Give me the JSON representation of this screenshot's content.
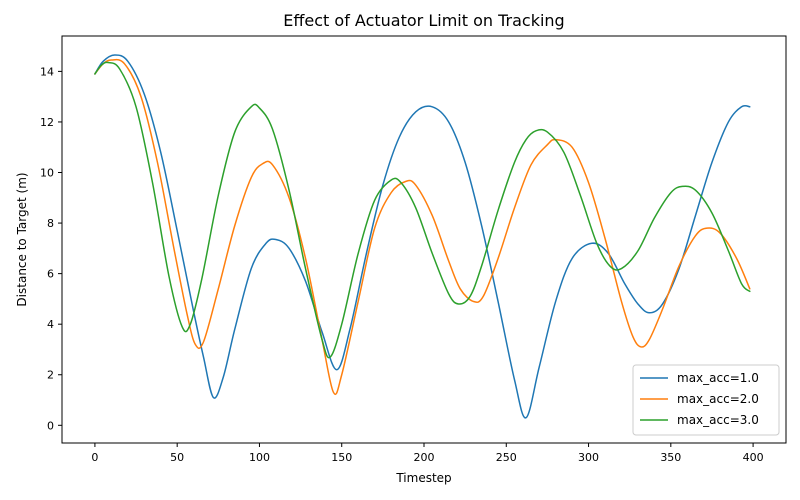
{
  "chart_data": {
    "type": "line",
    "title": "Effect of Actuator Limit on Tracking",
    "xlabel": "Timestep",
    "ylabel": "Distance to Target (m)",
    "xlim": [
      -20,
      420
    ],
    "ylim": [
      -0.7,
      15.4
    ],
    "xticks": [
      0,
      50,
      100,
      150,
      200,
      250,
      300,
      350,
      400
    ],
    "yticks": [
      0,
      2,
      4,
      6,
      8,
      10,
      12,
      14
    ],
    "grid": false,
    "legend": {
      "placement": "lower right"
    },
    "series": [
      {
        "name": "max_acc=1.0",
        "color": "#1f77b4",
        "x": [
          0,
          5,
          12,
          20,
          30,
          40,
          50,
          60,
          66,
          72,
          78,
          85,
          95,
          104,
          110,
          118,
          128,
          138,
          147,
          155,
          165,
          175,
          185,
          195,
          205,
          215,
          225,
          235,
          245,
          255,
          262,
          270,
          280,
          290,
          302,
          312,
          322,
          330,
          337,
          345,
          355,
          365,
          375,
          385,
          393,
          398
        ],
        "y": [
          13.9,
          14.4,
          14.65,
          14.4,
          13.1,
          10.8,
          7.7,
          4.5,
          2.7,
          1.1,
          1.9,
          3.8,
          6.2,
          7.2,
          7.35,
          7.0,
          5.7,
          3.7,
          2.2,
          3.8,
          6.8,
          9.5,
          11.4,
          12.4,
          12.6,
          12.0,
          10.4,
          7.9,
          4.9,
          1.8,
          0.3,
          2.3,
          4.9,
          6.6,
          7.2,
          6.8,
          5.6,
          4.8,
          4.45,
          4.8,
          6.2,
          8.3,
          10.4,
          12.0,
          12.6,
          12.6
        ]
      },
      {
        "name": "max_acc=2.0",
        "color": "#ff7f0e",
        "x": [
          0,
          5,
          10,
          18,
          28,
          38,
          48,
          56,
          61,
          66,
          75,
          85,
          95,
          102,
          108,
          118,
          128,
          138,
          145,
          150,
          160,
          170,
          180,
          189,
          195,
          205,
          215,
          222,
          230,
          236,
          245,
          255,
          265,
          275,
          280,
          290,
          300,
          310,
          320,
          327,
          332,
          337,
          345,
          355,
          365,
          372,
          380,
          390,
          398
        ],
        "y": [
          13.9,
          14.3,
          14.45,
          14.3,
          13.0,
          10.4,
          7.0,
          4.4,
          3.2,
          3.3,
          5.4,
          7.9,
          9.8,
          10.35,
          10.3,
          9.0,
          6.6,
          3.4,
          1.3,
          2.0,
          4.9,
          7.8,
          9.2,
          9.65,
          9.5,
          8.3,
          6.5,
          5.4,
          4.9,
          5.1,
          6.6,
          8.6,
          10.3,
          11.1,
          11.3,
          11.0,
          9.6,
          7.4,
          4.9,
          3.5,
          3.1,
          3.4,
          4.6,
          6.3,
          7.5,
          7.8,
          7.6,
          6.6,
          5.4
        ]
      },
      {
        "name": "max_acc=3.0",
        "color": "#2ca02c",
        "x": [
          0,
          4,
          8,
          15,
          25,
          35,
          45,
          53,
          58,
          65,
          75,
          85,
          95,
          100,
          108,
          118,
          128,
          138,
          143,
          150,
          160,
          170,
          180,
          186,
          195,
          205,
          215,
          221,
          228,
          235,
          245,
          255,
          262,
          268,
          275,
          285,
          295,
          305,
          313,
          320,
          330,
          340,
          350,
          357,
          365,
          375,
          385,
          393,
          398
        ],
        "y": [
          13.9,
          14.25,
          14.35,
          14.1,
          12.6,
          9.6,
          5.9,
          3.9,
          4.0,
          5.8,
          9.1,
          11.6,
          12.6,
          12.55,
          11.7,
          9.3,
          6.2,
          3.4,
          2.7,
          4.0,
          6.8,
          8.9,
          9.7,
          9.6,
          8.6,
          6.8,
          5.2,
          4.8,
          5.1,
          6.3,
          8.5,
          10.4,
          11.3,
          11.65,
          11.6,
          10.8,
          9.1,
          7.2,
          6.3,
          6.2,
          6.9,
          8.2,
          9.2,
          9.45,
          9.3,
          8.4,
          6.9,
          5.6,
          5.3
        ]
      }
    ]
  }
}
